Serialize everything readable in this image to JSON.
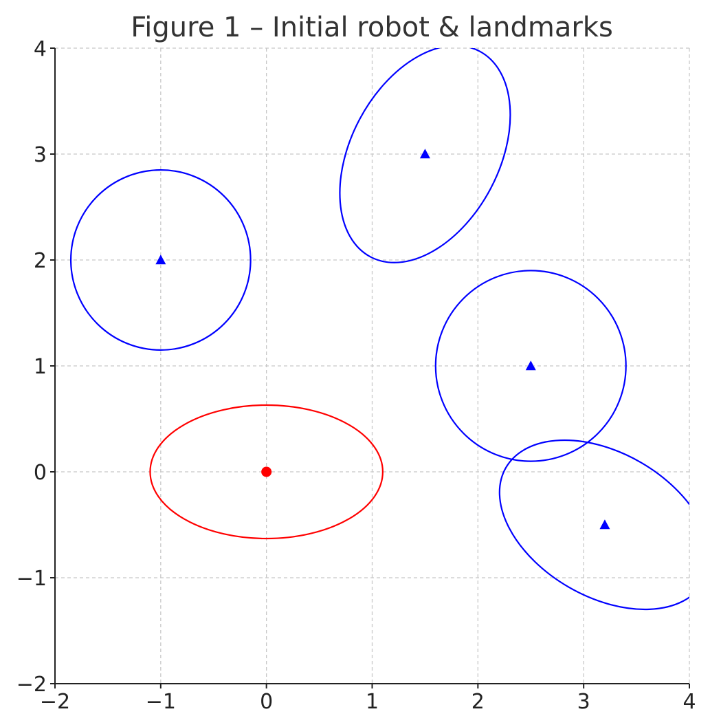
{
  "chart_data": {
    "type": "scatter",
    "title": "Figure 1 – Initial robot & landmarks",
    "xlabel": "",
    "ylabel": "",
    "xlim": [
      -2,
      4
    ],
    "ylim": [
      -2,
      4
    ],
    "x_ticks": [
      -2,
      -1,
      0,
      1,
      2,
      3,
      4
    ],
    "y_ticks": [
      -2,
      -1,
      0,
      1,
      2,
      3,
      4
    ],
    "x_tick_labels": [
      "−2",
      "−1",
      "0",
      "1",
      "2",
      "3",
      "4"
    ],
    "y_tick_labels": [
      "−2",
      "−1",
      "0",
      "1",
      "2",
      "3",
      "4"
    ],
    "grid": true,
    "series": [
      {
        "marker": "circle",
        "color": "#ff0000",
        "points": [
          {
            "x": 0,
            "y": 0
          }
        ]
      },
      {
        "marker": "triangle",
        "color": "#0000ff",
        "points": [
          {
            "x": -1,
            "y": 2
          },
          {
            "x": 1.5,
            "y": 3
          },
          {
            "x": 2.5,
            "y": 1
          },
          {
            "x": 3.2,
            "y": -0.5
          }
        ]
      }
    ],
    "ellipses": [
      {
        "cx": 0,
        "cy": 0,
        "rx": 1.1,
        "ry": 0.63,
        "angle_deg": 0,
        "color": "#ff0000"
      },
      {
        "cx": -1,
        "cy": 2,
        "rx": 0.85,
        "ry": 0.85,
        "angle_deg": 0,
        "color": "#0000ff"
      },
      {
        "cx": 1.5,
        "cy": 3,
        "rx": 1.1,
        "ry": 0.7,
        "angle_deg": 62,
        "color": "#0000ff"
      },
      {
        "cx": 2.5,
        "cy": 1,
        "rx": 0.9,
        "ry": 0.9,
        "angle_deg": 0,
        "color": "#0000ff"
      },
      {
        "cx": 3.2,
        "cy": -0.5,
        "rx": 1.08,
        "ry": 0.68,
        "angle_deg": -30,
        "color": "#0000ff"
      }
    ]
  }
}
